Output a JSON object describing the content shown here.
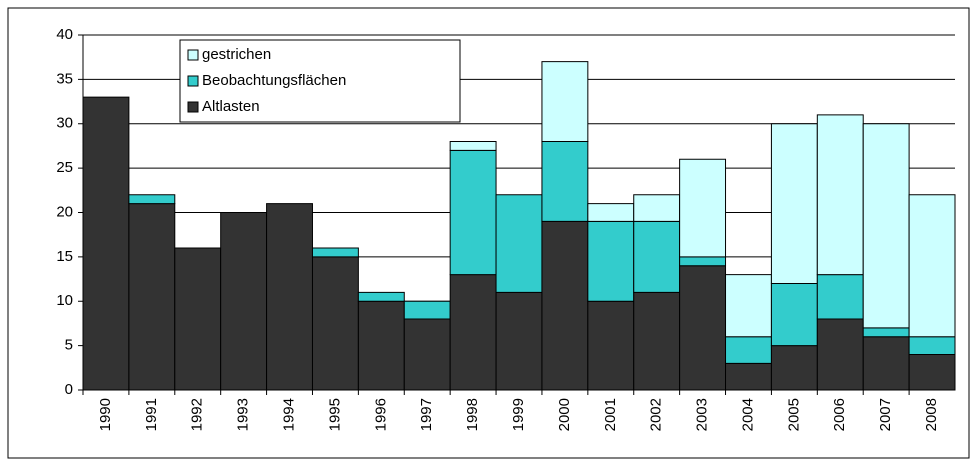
{
  "chart_data": {
    "type": "stacked-bar",
    "categories": [
      "1990",
      "1991",
      "1992",
      "1993",
      "1994",
      "1995",
      "1996",
      "1997",
      "1998",
      "1999",
      "2000",
      "2001",
      "2002",
      "2003",
      "2004",
      "2005",
      "2006",
      "2007",
      "2008"
    ],
    "series": [
      {
        "name": "Altlasten",
        "color": "#333333",
        "values": [
          33,
          21,
          16,
          20,
          21,
          15,
          10,
          8,
          13,
          11,
          19,
          10,
          11,
          14,
          3,
          5,
          8,
          6,
          4
        ]
      },
      {
        "name": "Beobachtungsflächen",
        "color": "#33cccc",
        "values": [
          0,
          1,
          0,
          0,
          0,
          1,
          1,
          2,
          14,
          11,
          9,
          9,
          8,
          1,
          3,
          7,
          5,
          1,
          2
        ]
      },
      {
        "name": "gestrichen",
        "color": "#ccffff",
        "values": [
          0,
          0,
          0,
          0,
          0,
          0,
          0,
          0,
          1,
          0,
          9,
          2,
          3,
          11,
          7,
          18,
          18,
          23,
          16
        ]
      }
    ],
    "ylim": [
      0,
      40
    ],
    "yticks": [
      0,
      5,
      10,
      15,
      20,
      25,
      30,
      35,
      40
    ],
    "grid": true
  }
}
